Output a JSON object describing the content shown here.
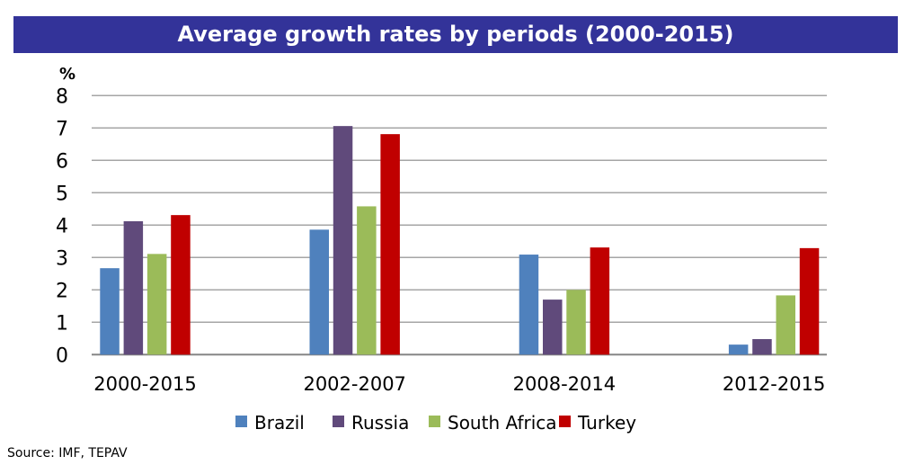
{
  "chart_data": {
    "type": "bar",
    "title": "Average growth rates by periods (2000-2015)",
    "ylabel": "%",
    "xlabel": "",
    "ylim": [
      0,
      8
    ],
    "yticks": [
      "0",
      "1",
      "2",
      "3",
      "4",
      "5",
      "6",
      "7",
      "8"
    ],
    "grid": true,
    "legend_position": "bottom",
    "categories": [
      "2000-2015",
      "2002-2007",
      "2008-2014",
      "2012-2015"
    ],
    "series": [
      {
        "name": "Brazil",
        "color": "#4F81BD",
        "values": [
          2.67,
          3.86,
          3.09,
          0.31
        ]
      },
      {
        "name": "Russia",
        "color": "#604A7B",
        "values": [
          4.12,
          7.06,
          1.7,
          0.48
        ]
      },
      {
        "name": "South Africa",
        "color": "#9BBB59",
        "values": [
          3.11,
          4.58,
          2.0,
          1.83
        ]
      },
      {
        "name": "Turkey",
        "color": "#C00000",
        "values": [
          4.31,
          6.81,
          3.31,
          3.29
        ]
      }
    ]
  },
  "source": "Source: IMF, TEPAV"
}
